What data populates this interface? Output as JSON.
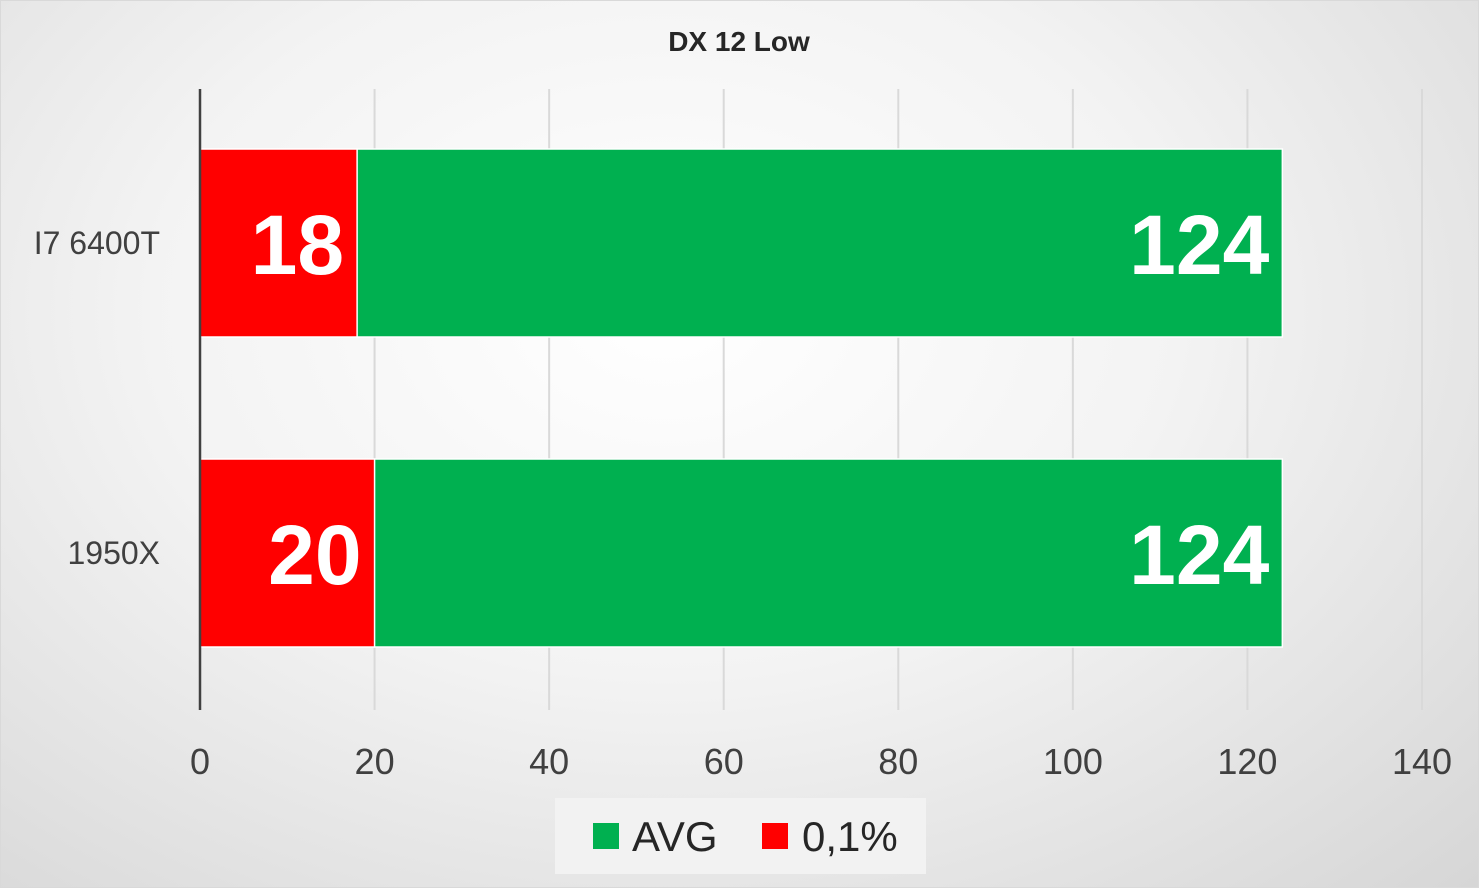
{
  "chart_data": {
    "type": "bar",
    "orientation": "horizontal",
    "stacked": true,
    "title": "DX 12 Low",
    "categories": [
      "I7 6400T",
      "1950X"
    ],
    "series": [
      {
        "name": "0,1%",
        "color": "#ff0000",
        "values": [
          18,
          20
        ]
      },
      {
        "name": "AVG",
        "color": "#00b050",
        "values": [
          124,
          124
        ]
      }
    ],
    "data_labels": [
      {
        "category": "I7 6400T",
        "series": "0,1%",
        "text": "18"
      },
      {
        "category": "I7 6400T",
        "series": "AVG",
        "text": "124"
      },
      {
        "category": "1950X",
        "series": "0,1%",
        "text": "20"
      },
      {
        "category": "1950X",
        "series": "AVG",
        "text": "124"
      }
    ],
    "x_ticks": [
      "0",
      "20",
      "40",
      "60",
      "80",
      "100",
      "120",
      "140"
    ],
    "xlim": [
      0,
      140
    ],
    "grid": true,
    "legend": {
      "position": "bottom",
      "entries": [
        "AVG",
        "0,1%"
      ]
    }
  }
}
